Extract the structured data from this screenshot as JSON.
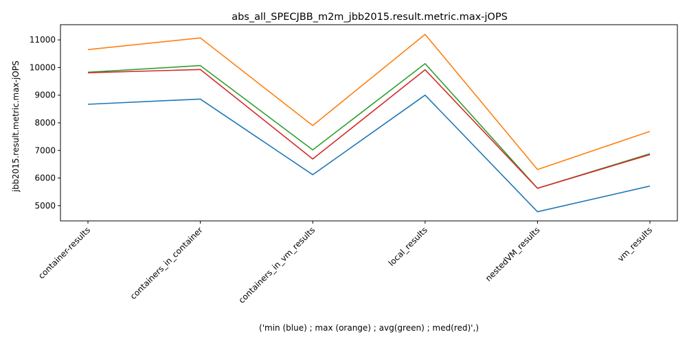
{
  "chart_data": {
    "type": "line",
    "title": "abs_all_SPECJBB_m2m_jbb2015.result.metric.max-jOPS",
    "xlabel": "('min (blue) ; max (orange) ; avg(green) ; med(red)',)",
    "ylabel": "jbb2015.result.metric.max-jOPS",
    "categories": [
      "container-results",
      "containers_in_container",
      "containers_in_vm_results",
      "local_results",
      "nestedVM_results",
      "vm_results"
    ],
    "ylim": [
      4450,
      11550
    ],
    "yticks": [
      5000,
      6000,
      7000,
      8000,
      9000,
      10000,
      11000
    ],
    "grid": false,
    "series": [
      {
        "color": "#1f77b4",
        "values": [
          8670,
          8860,
          6120,
          9000,
          4780,
          5710
        ]
      },
      {
        "color": "#ff7f0e",
        "values": [
          10650,
          11070,
          7900,
          11200,
          6310,
          7690
        ]
      },
      {
        "color": "#2ca02c",
        "values": [
          9830,
          10070,
          7020,
          10140,
          5630,
          6880
        ]
      },
      {
        "color": "#d62728",
        "values": [
          9810,
          9930,
          6690,
          9920,
          5630,
          6850
        ]
      }
    ]
  }
}
